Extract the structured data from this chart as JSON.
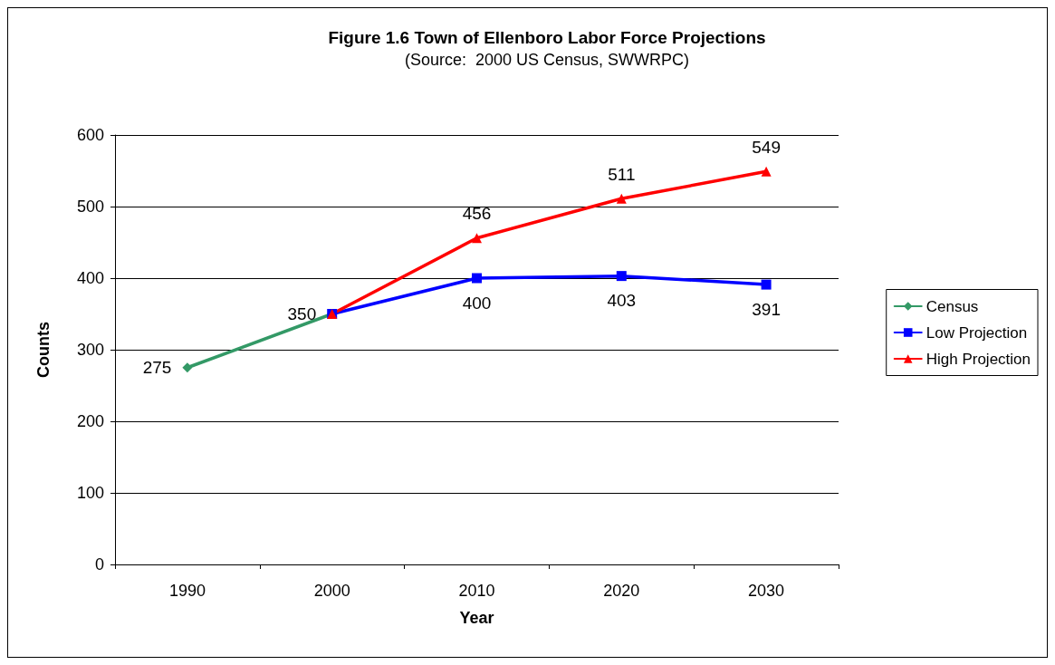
{
  "chart_data": {
    "type": "line",
    "title": "Figure 1.6 Town of Ellenboro Labor Force Projections",
    "subtitle": "(Source:  2000 US Census, SWWRPC)",
    "xlabel": "Year",
    "ylabel": "Counts",
    "categories": [
      "1990",
      "2000",
      "2010",
      "2020",
      "2030"
    ],
    "series": [
      {
        "name": "Census",
        "color": "#339966",
        "marker": "diamond",
        "values": [
          275,
          350,
          null,
          null,
          null
        ],
        "value_labels": [
          "275",
          "350",
          null,
          null,
          null
        ]
      },
      {
        "name": "Low Projection",
        "color": "#0000ff",
        "marker": "square",
        "values": [
          null,
          350,
          400,
          403,
          391
        ],
        "value_labels": [
          null,
          null,
          "400",
          "403",
          "391"
        ]
      },
      {
        "name": "High Projection",
        "color": "#ff0000",
        "marker": "triangle",
        "values": [
          null,
          350,
          456,
          511,
          549
        ],
        "value_labels": [
          null,
          null,
          "456",
          "511",
          "549"
        ]
      }
    ],
    "ylim": [
      0,
      600
    ],
    "yticks": [
      0,
      100,
      200,
      300,
      400,
      500,
      600
    ],
    "grid": "y",
    "legend": "right",
    "line_style": "solid"
  }
}
